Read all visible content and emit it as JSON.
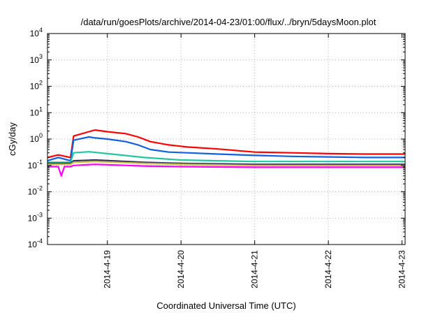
{
  "chart_data": {
    "type": "line",
    "title": "/data/run/goesPlots/archive/2014-04-23/01:00/flux/../bryn/5daysMoon.plot",
    "xlabel": "Coordinated Universal Time (UTC)",
    "ylabel": "cGy/day",
    "y_scale": "log",
    "ylim": [
      0.0001,
      10000
    ],
    "y_ticks": [
      {
        "base": "10",
        "exp": "-4"
      },
      {
        "base": "10",
        "exp": "-3"
      },
      {
        "base": "10",
        "exp": "-2"
      },
      {
        "base": "10",
        "exp": "-1"
      },
      {
        "base": "10",
        "exp": "0"
      },
      {
        "base": "10",
        "exp": "1"
      },
      {
        "base": "10",
        "exp": "2"
      },
      {
        "base": "10",
        "exp": "3"
      },
      {
        "base": "10",
        "exp": "4"
      }
    ],
    "xlim": [
      "2014-04-18T04:30",
      "2014-04-23T01:00"
    ],
    "x_ticks": [
      "2014-4-19",
      "2014-4-20",
      "2014-4-21",
      "2014-4-22",
      "2014-4-23"
    ],
    "grid": true,
    "series": [
      {
        "color": "#ff0000",
        "x": [
          "2014-04-18T04:30",
          "2014-04-18T08:00",
          "2014-04-18T12:00",
          "2014-04-18T13:00",
          "2014-04-18T18:00",
          "2014-04-18T20:00",
          "2014-04-19T00:00",
          "2014-04-19T06:00",
          "2014-04-19T10:00",
          "2014-04-19T14:00",
          "2014-04-19T20:00",
          "2014-04-20T02:00",
          "2014-04-20T12:00",
          "2014-04-21T00:00",
          "2014-04-21T12:00",
          "2014-04-22T00:00",
          "2014-04-22T12:00",
          "2014-04-23T01:00"
        ],
        "y": [
          0.2,
          0.25,
          0.2,
          1.3,
          1.9,
          2.2,
          1.9,
          1.6,
          1.2,
          0.8,
          0.6,
          0.5,
          0.42,
          0.32,
          0.3,
          0.28,
          0.27,
          0.27
        ]
      },
      {
        "color": "#1060e0",
        "x": [
          "2014-04-18T04:30",
          "2014-04-18T08:00",
          "2014-04-18T12:00",
          "2014-04-18T13:00",
          "2014-04-18T18:00",
          "2014-04-18T20:00",
          "2014-04-19T00:00",
          "2014-04-19T06:00",
          "2014-04-19T10:00",
          "2014-04-19T14:00",
          "2014-04-19T20:00",
          "2014-04-20T02:00",
          "2014-04-20T12:00",
          "2014-04-21T00:00",
          "2014-04-21T12:00",
          "2014-04-22T00:00",
          "2014-04-22T12:00",
          "2014-04-23T01:00"
        ],
        "y": [
          0.15,
          0.2,
          0.15,
          0.9,
          1.2,
          1.1,
          1.0,
          0.8,
          0.6,
          0.4,
          0.32,
          0.3,
          0.27,
          0.24,
          0.22,
          0.21,
          0.2,
          0.2
        ]
      },
      {
        "color": "#20c8a0",
        "x": [
          "2014-04-18T04:30",
          "2014-04-18T12:00",
          "2014-04-18T13:00",
          "2014-04-18T18:00",
          "2014-04-19T00:00",
          "2014-04-19T12:00",
          "2014-04-20T00:00",
          "2014-04-20T12:00",
          "2014-04-21T00:00",
          "2014-04-22T00:00",
          "2014-04-23T01:00"
        ],
        "y": [
          0.13,
          0.13,
          0.3,
          0.33,
          0.28,
          0.2,
          0.16,
          0.15,
          0.14,
          0.14,
          0.14
        ]
      },
      {
        "color": "#303060",
        "x": [
          "2014-04-18T04:30",
          "2014-04-18T12:00",
          "2014-04-18T13:00",
          "2014-04-18T20:00",
          "2014-04-19T12:00",
          "2014-04-20T00:00",
          "2014-04-21T00:00",
          "2014-04-22T00:00",
          "2014-04-23T01:00"
        ],
        "y": [
          0.12,
          0.12,
          0.15,
          0.16,
          0.13,
          0.12,
          0.11,
          0.11,
          0.11
        ]
      },
      {
        "color": "#c8c040",
        "x": [
          "2014-04-18T04:30",
          "2014-04-18T12:00",
          "2014-04-18T13:00",
          "2014-04-18T20:00",
          "2014-04-19T12:00",
          "2014-04-20T00:00",
          "2014-04-21T00:00",
          "2014-04-22T00:00",
          "2014-04-23T01:00"
        ],
        "y": [
          0.11,
          0.11,
          0.13,
          0.14,
          0.12,
          0.11,
          0.1,
          0.1,
          0.1
        ]
      },
      {
        "color": "#ff00ff",
        "x": [
          "2014-04-18T04:30",
          "2014-04-18T08:00",
          "2014-04-18T09:00",
          "2014-04-18T10:00",
          "2014-04-18T12:00",
          "2014-04-18T13:00",
          "2014-04-18T20:00",
          "2014-04-19T12:00",
          "2014-04-20T00:00",
          "2014-04-21T00:00",
          "2014-04-22T00:00",
          "2014-04-23T01:00"
        ],
        "y": [
          0.09,
          0.09,
          0.04,
          0.09,
          0.09,
          0.1,
          0.11,
          0.095,
          0.09,
          0.085,
          0.085,
          0.085
        ]
      }
    ]
  }
}
